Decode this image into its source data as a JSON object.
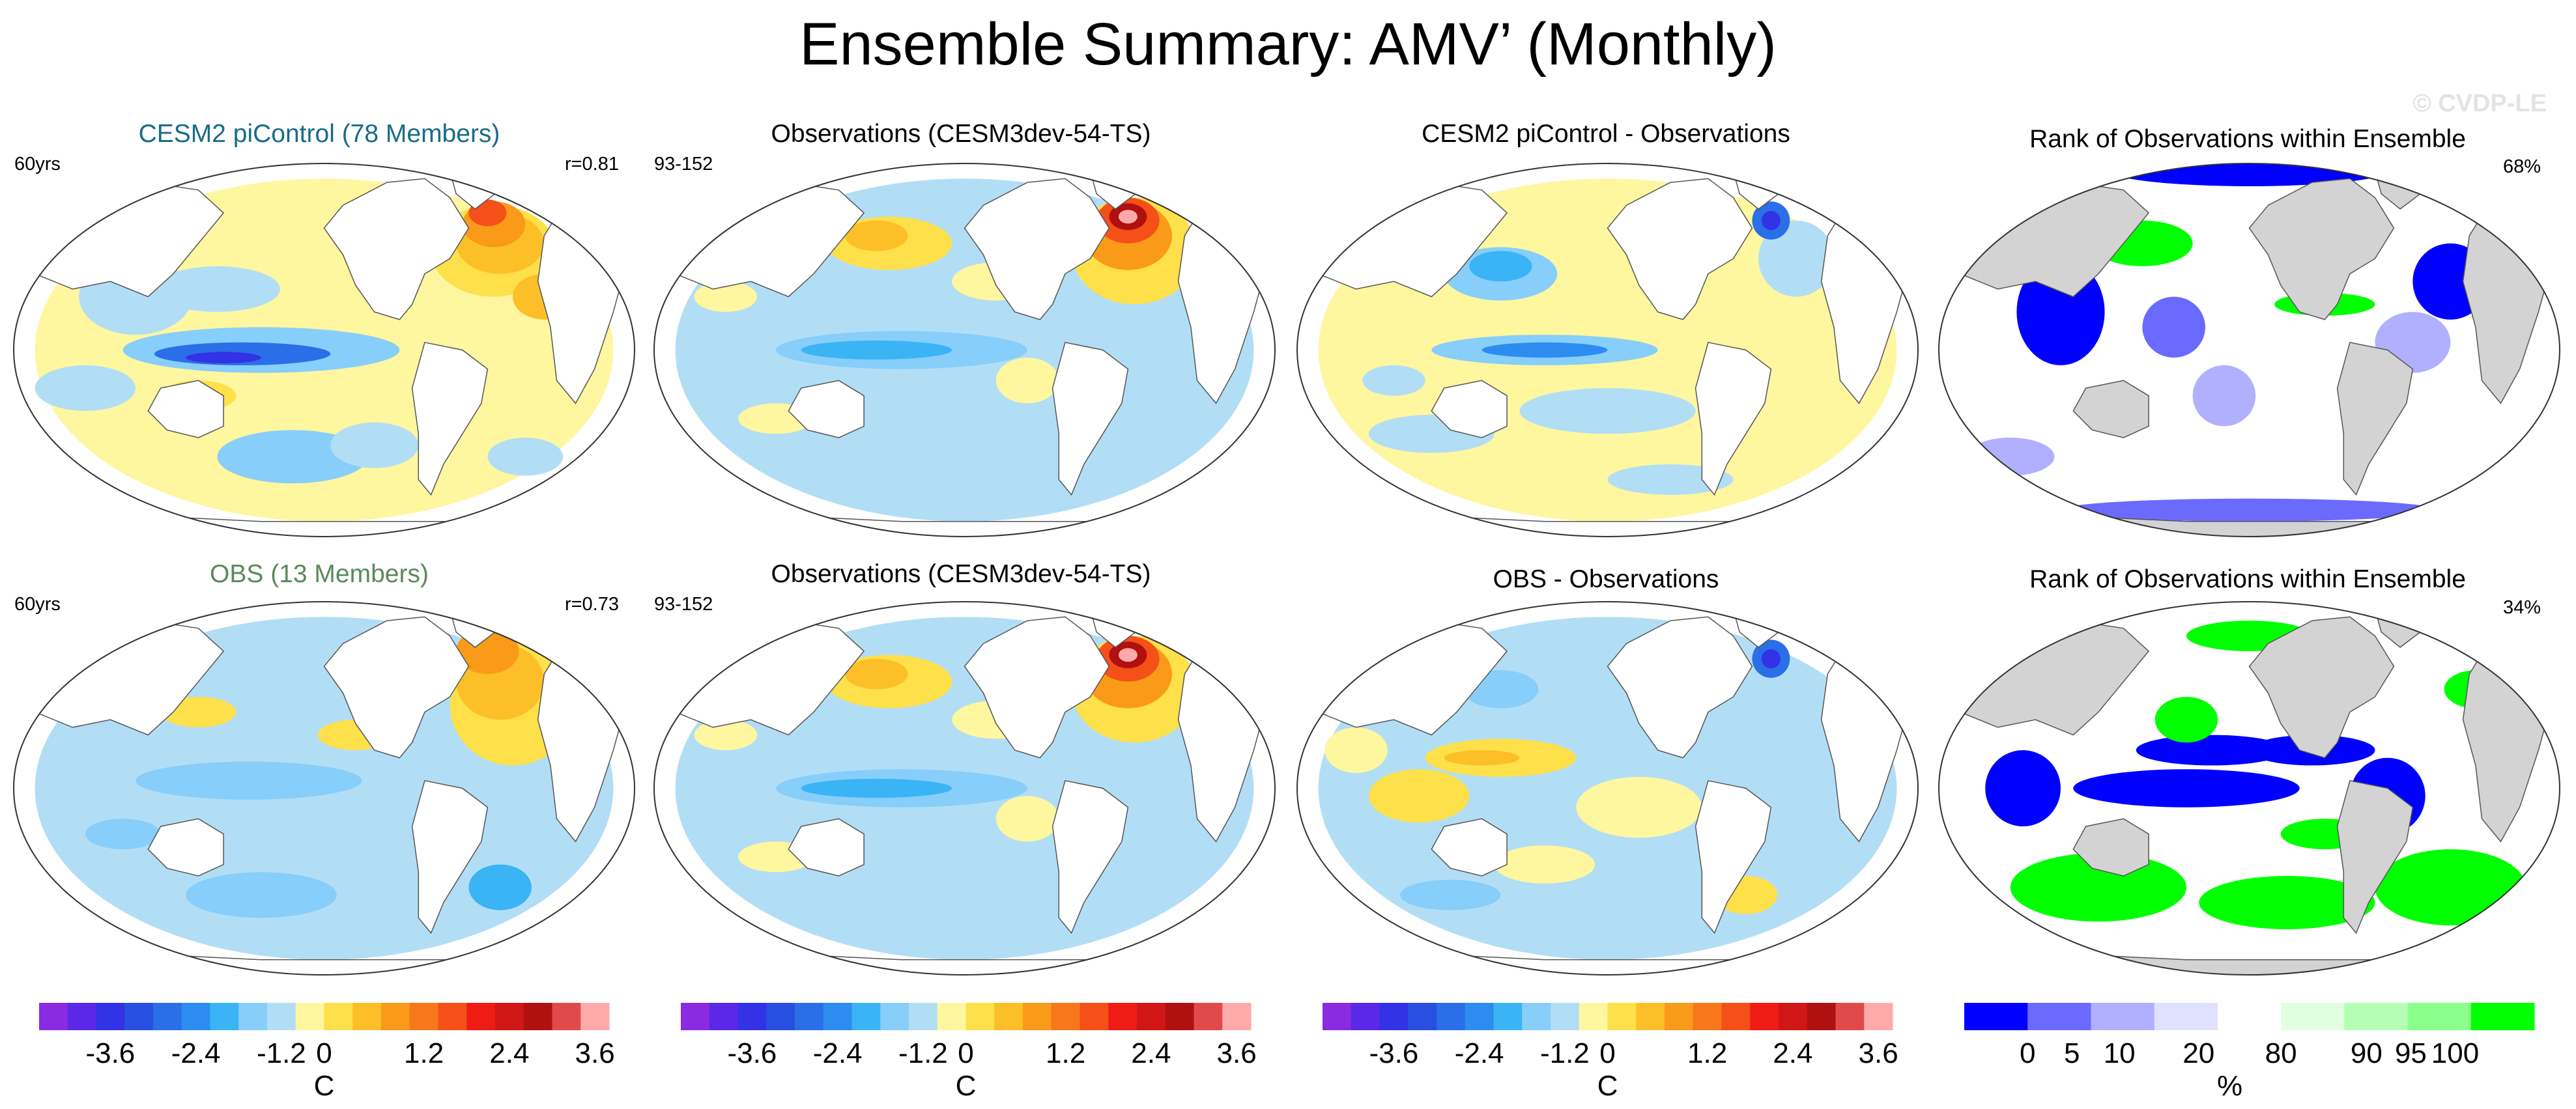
{
  "title": "Ensemble Summary: AMV’ (Monthly)",
  "watermark": "© CVDP-LE",
  "rows": [
    {
      "panels": [
        {
          "title": "CESM2 piControl (78 Members)",
          "title_color": "#1a6b8a",
          "left": "60yrs",
          "right": "r=0.81",
          "kind": "pattern1"
        },
        {
          "title": "Observations (CESM3dev-54-TS)",
          "title_color": "#000000",
          "left": "93-152",
          "right": "",
          "kind": "obs"
        },
        {
          "title": "CESM2 piControl - Observations",
          "title_color": "#000000",
          "left": "",
          "right": "",
          "kind": "diff1"
        },
        {
          "title": "Rank of Observations within Ensemble",
          "title_color": "#000000",
          "left": "",
          "right": "68%",
          "kind": "rank1"
        }
      ]
    },
    {
      "panels": [
        {
          "title": "OBS (13 Members)",
          "title_color": "#5a8a5a",
          "left": "60yrs",
          "right": "r=0.73",
          "kind": "pattern2"
        },
        {
          "title": "Observations (CESM3dev-54-TS)",
          "title_color": "#000000",
          "left": "93-152",
          "right": "",
          "kind": "obs"
        },
        {
          "title": "OBS - Observations",
          "title_color": "#000000",
          "left": "",
          "right": "",
          "kind": "diff2"
        },
        {
          "title": "Rank of Observations within Ensemble",
          "title_color": "#000000",
          "left": "",
          "right": "34%",
          "kind": "rank2"
        }
      ]
    }
  ],
  "colorbars": [
    {
      "unit": "C",
      "colors": [
        "#8a2be2",
        "#5a28e6",
        "#3232e6",
        "#2850e0",
        "#2a6ee8",
        "#2d8cf0",
        "#3ab4f5",
        "#87cefa",
        "#b2def5",
        "#fff6a0",
        "#fde04a",
        "#fcbf28",
        "#f99a18",
        "#f6781a",
        "#f45018",
        "#ef1c16",
        "#d11616",
        "#b01010",
        "#e04a4a",
        "#ffaaaa"
      ],
      "labels": [
        "-3.6",
        "-2.4",
        "-1.2",
        "0",
        "1.2",
        "2.4",
        "3.6"
      ]
    },
    {
      "unit": "C",
      "colors": [
        "#8a2be2",
        "#5a28e6",
        "#3232e6",
        "#2850e0",
        "#2a6ee8",
        "#2d8cf0",
        "#3ab4f5",
        "#87cefa",
        "#b2def5",
        "#fff6a0",
        "#fde04a",
        "#fcbf28",
        "#f99a18",
        "#f6781a",
        "#f45018",
        "#ef1c16",
        "#d11616",
        "#b01010",
        "#e04a4a",
        "#ffaaaa"
      ],
      "labels": [
        "-3.6",
        "-2.4",
        "-1.2",
        "0",
        "1.2",
        "2.4",
        "3.6"
      ]
    },
    {
      "unit": "C",
      "colors": [
        "#8a2be2",
        "#5a28e6",
        "#3232e6",
        "#2850e0",
        "#2a6ee8",
        "#2d8cf0",
        "#3ab4f5",
        "#87cefa",
        "#b2def5",
        "#fff6a0",
        "#fde04a",
        "#fcbf28",
        "#f99a18",
        "#f6781a",
        "#f45018",
        "#ef1c16",
        "#d11616",
        "#b01010",
        "#e04a4a",
        "#ffaaaa"
      ],
      "labels": [
        "-3.6",
        "-2.4",
        "-1.2",
        "0",
        "1.2",
        "2.4",
        "3.6"
      ]
    },
    {
      "unit": "%",
      "colors": [
        "#0000ff",
        "#6a6aff",
        "#b0b0ff",
        "#e0e0ff",
        "#ffffff",
        "#e0ffe0",
        "#b4ffb4",
        "#8aff8a",
        "#00ff00"
      ],
      "labels": [
        "0",
        "5",
        "10",
        "20",
        "80",
        "90",
        "95",
        "100"
      ]
    }
  ],
  "chart_data": {
    "type": "heatmap",
    "title": "Ensemble Summary: AMV’ (Monthly)",
    "panel_titles": [
      "CESM2 piControl (78 Members)",
      "Observations (CESM3dev-54-TS)",
      "CESM2 piControl - Observations",
      "Rank of Observations within Ensemble",
      "OBS (13 Members)",
      "Observations (CESM3dev-54-TS)",
      "OBS - Observations",
      "Rank of Observations within Ensemble"
    ],
    "pattern_correlations": {
      "CESM2 piControl (78 Members)": 0.81,
      "OBS (13 Members)": 0.73
    },
    "rank_percent": {
      "CESM2 piControl (78 Members)": 68,
      "OBS (13 Members)": 34
    },
    "temperature_colorbar": {
      "unit": "C",
      "range": [
        -3.6,
        3.6
      ],
      "ticks": [
        -3.6,
        -2.4,
        -1.2,
        0,
        1.2,
        2.4,
        3.6
      ]
    },
    "rank_colorbar": {
      "unit": "%",
      "ticks": [
        0,
        5,
        10,
        20,
        80,
        90,
        95,
        100
      ]
    }
  }
}
